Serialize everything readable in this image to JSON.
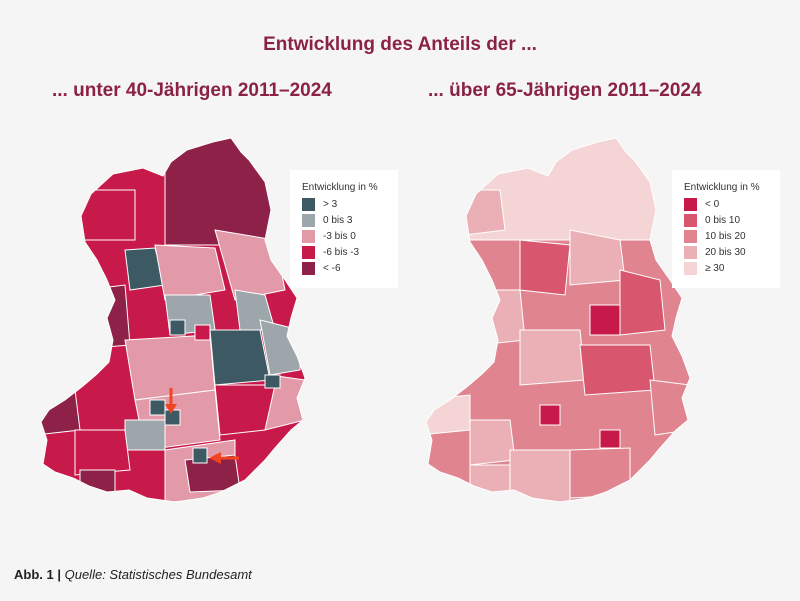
{
  "title": "Entwicklung des Anteils der ...",
  "left": {
    "subtitle": "... unter 40-Jährigen 2011–2024",
    "legend_title": "Entwicklung in %",
    "legend": [
      {
        "label": "> 3",
        "color": "#3d5a64"
      },
      {
        "label": "0 bis 3",
        "color": "#9da6ab"
      },
      {
        "label": "-3 bis 0",
        "color": "#e39aa8"
      },
      {
        "label": "-6 bis -3",
        "color": "#c81a4a"
      },
      {
        "label": "< -6",
        "color": "#8e2148"
      }
    ],
    "arrow_color": "#f04423"
  },
  "right": {
    "subtitle": "... über 65-Jährigen 2011–2024",
    "legend_title": "Entwicklung in %",
    "legend": [
      {
        "label": "< 0",
        "color": "#c81a4a"
      },
      {
        "label": "0 bis 10",
        "color": "#d8576f"
      },
      {
        "label": "10 bis 20",
        "color": "#e0848f"
      },
      {
        "label": "20 bis 30",
        "color": "#ebb0b6"
      },
      {
        "label": "≥ 30",
        "color": "#f5d4d6"
      }
    ]
  },
  "footer": {
    "label": "Abb. 1 |",
    "source": "Quelle: Statistisches Bundesamt"
  }
}
